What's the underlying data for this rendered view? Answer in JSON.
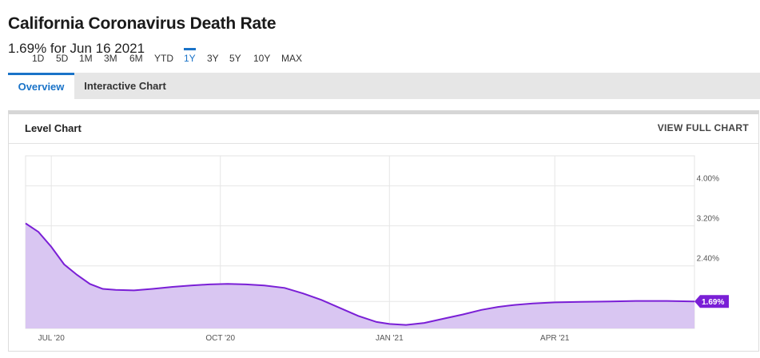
{
  "header": {
    "title": "California Coronavirus Death Rate",
    "subtitle": "1.69% for Jun 16 2021"
  },
  "tabs": [
    {
      "label": "Overview",
      "active": true
    },
    {
      "label": "Interactive Chart",
      "active": false
    }
  ],
  "panel": {
    "title": "Level Chart",
    "full_chart_label": "VIEW FULL CHART"
  },
  "ranges": [
    "1D",
    "5D",
    "1M",
    "3M",
    "6M",
    "YTD",
    "1Y",
    "3Y",
    "5Y",
    "10Y",
    "MAX"
  ],
  "active_range": "1Y",
  "colors": {
    "accent": "#1a73c8",
    "line": "#7a1fd6",
    "fill": "#d9c6f2",
    "badge": "#7a1fd6"
  },
  "chart_data": {
    "type": "area",
    "title": "",
    "xlabel": "",
    "ylabel": "",
    "x_tick_labels": [
      "JUL '20",
      "OCT '20",
      "JAN '21",
      "APR '21"
    ],
    "y_tick_labels": [
      "4.00%",
      "3.20%",
      "2.40%"
    ],
    "ylim": [
      1.15,
      4.6
    ],
    "grid": true,
    "current_value_label": "1.69%",
    "series": [
      {
        "dates": [
          "2020-06-17",
          "2020-06-24",
          "2020-07-01",
          "2020-07-08",
          "2020-07-15",
          "2020-07-22",
          "2020-07-29",
          "2020-08-05",
          "2020-08-15",
          "2020-08-25",
          "2020-09-05",
          "2020-09-15",
          "2020-09-25",
          "2020-10-05",
          "2020-10-15",
          "2020-10-25",
          "2020-11-05",
          "2020-11-15",
          "2020-11-25",
          "2020-12-05",
          "2020-12-15",
          "2020-12-25",
          "2021-01-01",
          "2021-01-10",
          "2021-01-20",
          "2021-01-31",
          "2021-02-10",
          "2021-02-20",
          "2021-03-01",
          "2021-03-10",
          "2021-03-20",
          "2021-04-01",
          "2021-04-15",
          "2021-05-01",
          "2021-05-15",
          "2021-06-01",
          "2021-06-16"
        ],
        "values": [
          3.25,
          3.08,
          2.78,
          2.43,
          2.22,
          2.04,
          1.94,
          1.92,
          1.91,
          1.94,
          1.98,
          2.01,
          2.03,
          2.04,
          2.03,
          2.01,
          1.96,
          1.85,
          1.72,
          1.56,
          1.4,
          1.28,
          1.24,
          1.22,
          1.26,
          1.35,
          1.43,
          1.52,
          1.58,
          1.62,
          1.65,
          1.67,
          1.68,
          1.69,
          1.7,
          1.7,
          1.69
        ]
      }
    ]
  }
}
